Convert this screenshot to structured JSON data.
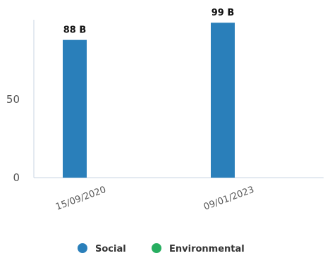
{
  "chart_data": {
    "type": "bar",
    "categories": [
      "15/09/2020",
      "09/01/2023"
    ],
    "series": [
      {
        "name": "Social",
        "color": "#2a7fba",
        "values": [
          88,
          99
        ],
        "data_labels": [
          "88 B",
          "99 B"
        ]
      },
      {
        "name": "Environmental",
        "color": "#27ae60",
        "values": [
          null,
          null
        ],
        "data_labels": [
          "",
          ""
        ]
      }
    ],
    "y_ticks": [
      "0",
      "50"
    ],
    "ylim": [
      0,
      100
    ],
    "grid": false,
    "legend_position": "bottom"
  }
}
